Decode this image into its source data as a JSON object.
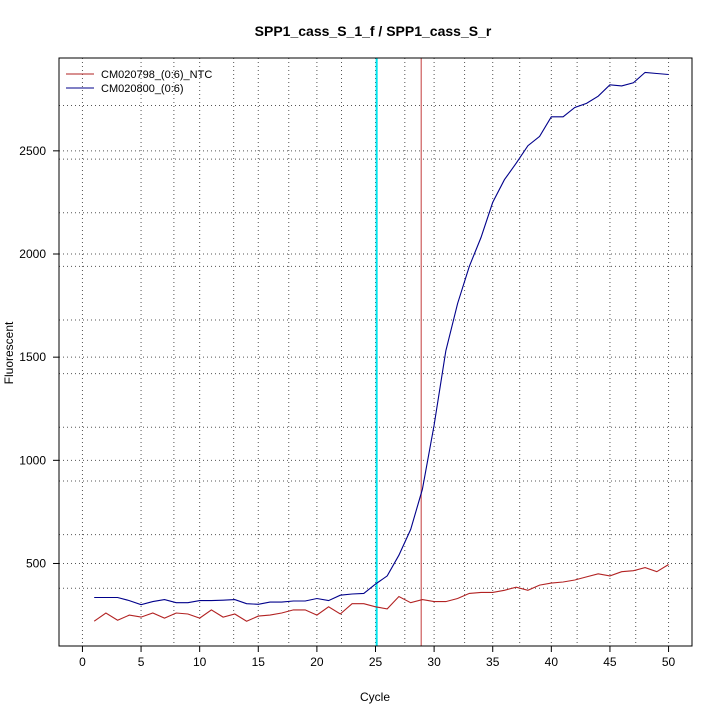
{
  "chart_data": {
    "type": "line",
    "title": "SPP1_cass_S_1_f / SPP1_cass_S_r",
    "xlabel": "Cycle",
    "ylabel": "Fluorescent",
    "xlim": [
      -2,
      52
    ],
    "ylim": [
      100,
      2950
    ],
    "xticks": [
      0,
      5,
      10,
      15,
      20,
      25,
      30,
      35,
      40,
      45,
      50
    ],
    "yticks": [
      500,
      1000,
      1500,
      2000,
      2500
    ],
    "grid": "dotted",
    "legend_position": "top-left",
    "colors": {
      "ntc": "#b22222",
      "sample": "#00008b",
      "threshold_cycle_line": "#00e5ee",
      "ct_line": "#cd5c5c",
      "grid": "#555555"
    },
    "vlines": [
      {
        "x": 25.1,
        "color": "#00e5ee"
      },
      {
        "x": 28.9,
        "color": "#cd5c5c"
      }
    ],
    "extra_grid_x": [
      7.8,
      12.9,
      17.6,
      22.1,
      27.5,
      32.6,
      37.3,
      42.2,
      47.2
    ],
    "extra_grid_y": [
      380,
      640,
      900,
      1160,
      1420,
      1680,
      1940,
      2200,
      2460,
      2720
    ],
    "x": [
      1,
      2,
      3,
      4,
      5,
      6,
      7,
      8,
      9,
      10,
      11,
      12,
      13,
      14,
      15,
      16,
      17,
      18,
      19,
      20,
      21,
      22,
      23,
      24,
      25,
      26,
      27,
      28,
      29,
      30,
      31,
      32,
      33,
      34,
      35,
      36,
      37,
      38,
      39,
      40,
      41,
      42,
      43,
      44,
      45,
      46,
      47,
      48,
      49,
      50
    ],
    "series": [
      {
        "name": "CM020798_(0:6)_NTC",
        "color": "#b22222",
        "values": [
          220,
          260,
          225,
          250,
          240,
          260,
          235,
          260,
          255,
          235,
          275,
          240,
          255,
          220,
          245,
          250,
          260,
          275,
          275,
          250,
          290,
          255,
          305,
          305,
          290,
          280,
          340,
          310,
          325,
          315,
          315,
          330,
          355,
          360,
          360,
          370,
          385,
          370,
          395,
          405,
          410,
          420,
          435,
          450,
          440,
          460,
          465,
          480,
          460,
          495
        ]
      },
      {
        "name": "CM020800_(0:6)",
        "color": "#00008b",
        "values": [
          335,
          335,
          335,
          320,
          300,
          315,
          325,
          310,
          310,
          320,
          320,
          322,
          325,
          305,
          302,
          313,
          313,
          318,
          318,
          330,
          320,
          346,
          352,
          355,
          400,
          440,
          540,
          665,
          860,
          1170,
          1530,
          1760,
          1940,
          2080,
          2250,
          2360,
          2440,
          2525,
          2570,
          2665,
          2665,
          2710,
          2730,
          2765,
          2820,
          2815,
          2830,
          2880,
          2875,
          2870
        ]
      }
    ]
  }
}
